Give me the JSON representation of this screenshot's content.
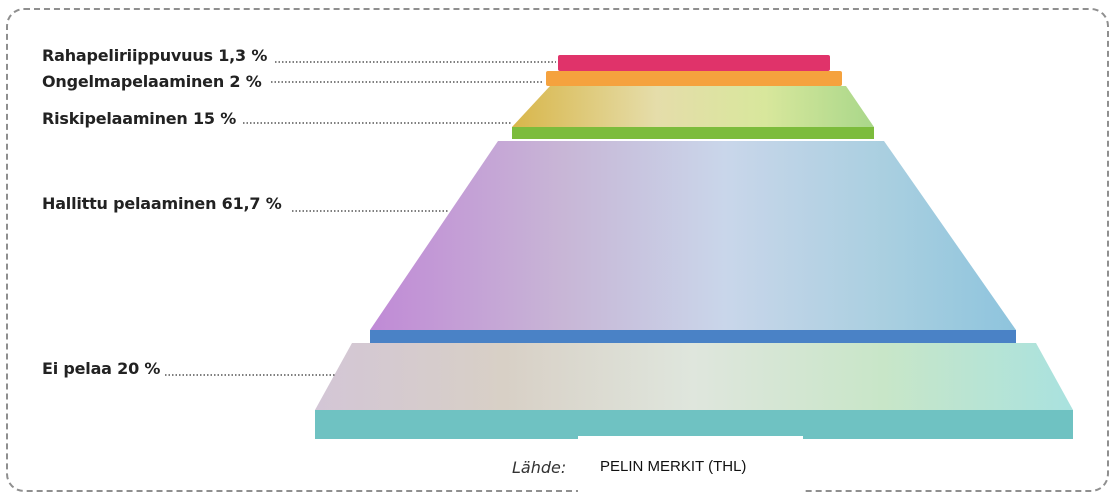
{
  "levels": [
    {
      "label": "Rahapeliriippuvuus 1,3 %",
      "value": 1.3,
      "color": "#e0336a"
    },
    {
      "label": "Ongelmapelaaminen 2 %",
      "value": 2,
      "color": "#f5a23e"
    },
    {
      "label": "Riskipelaaminen 15 %",
      "value": 15,
      "color": "#7cbc3c"
    },
    {
      "label": "Hallittu pelaaminen 61,7 %",
      "value": 61.7,
      "color": "#4a82c6"
    },
    {
      "label": "Ei pelaa 20 %",
      "value": 20,
      "color": "#6fc2c2"
    }
  ],
  "source": {
    "label": "Lähde:",
    "text": "PELIN MERKIT (THL)"
  }
}
